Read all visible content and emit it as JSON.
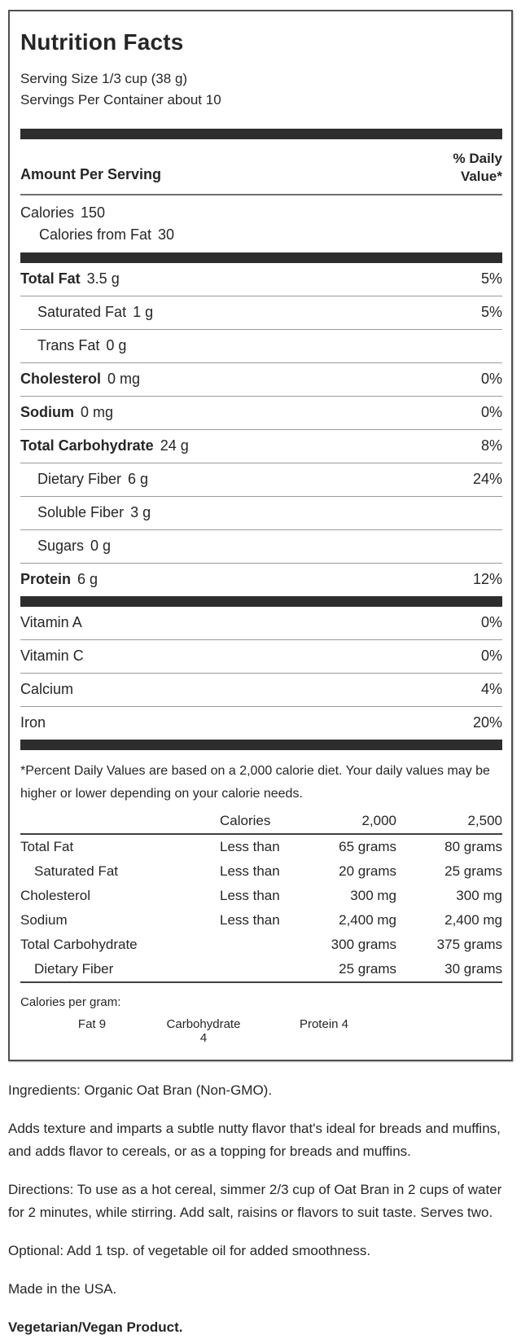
{
  "label": {
    "title": "Nutrition Facts",
    "serving_size": "Serving Size 1/3 cup (38 g)",
    "servings_per_container": "Servings Per Container about 10",
    "amount_per_serving": "Amount Per Serving",
    "daily_value_header_line1": "% Daily",
    "daily_value_header_line2": "Value*",
    "calories": {
      "label": "Calories",
      "value": "150"
    },
    "calories_from_fat": {
      "label": "Calories from Fat",
      "value": "30"
    },
    "nutrients": [
      {
        "label": "Total Fat",
        "amount": "3.5 g",
        "dv": "5%"
      },
      {
        "label": "Saturated Fat",
        "amount": "1 g",
        "dv": "5%"
      },
      {
        "label": "Trans Fat",
        "amount": "0 g",
        "dv": ""
      },
      {
        "label": "Cholesterol",
        "amount": "0 mg",
        "dv": "0%"
      },
      {
        "label": "Sodium",
        "amount": "0 mg",
        "dv": "0%"
      },
      {
        "label": "Total Carbohydrate",
        "amount": "24 g",
        "dv": "8%"
      },
      {
        "label": "Dietary Fiber",
        "amount": "6 g",
        "dv": "24%"
      },
      {
        "label": "Soluble Fiber",
        "amount": "3 g",
        "dv": ""
      },
      {
        "label": "Sugars",
        "amount": "0 g",
        "dv": ""
      },
      {
        "label": "Protein",
        "amount": "6 g",
        "dv": "12%"
      }
    ],
    "vitamins": [
      {
        "label": "Vitamin A",
        "dv": "0%"
      },
      {
        "label": "Vitamin C",
        "dv": "0%"
      },
      {
        "label": "Calcium",
        "dv": "4%"
      },
      {
        "label": "Iron",
        "dv": "20%"
      }
    ],
    "footnote": "*Percent Daily Values are based on a 2,000 calorie diet. Your daily values may be higher or lower depending on your calorie needs.",
    "dv_table": {
      "header": {
        "c2": "Calories",
        "c3": "2,000",
        "c4": "2,500"
      },
      "rows": [
        {
          "c1": "Total Fat",
          "c2": "Less than",
          "c3": "65 grams",
          "c4": "80 grams"
        },
        {
          "c1": "Saturated Fat",
          "c2": "Less than",
          "c3": "20 grams",
          "c4": "25 grams"
        },
        {
          "c1": "Cholesterol",
          "c2": "Less than",
          "c3": "300 mg",
          "c4": "300 mg"
        },
        {
          "c1": "Sodium",
          "c2": "Less than",
          "c3": "2,400 mg",
          "c4": "2,400 mg"
        },
        {
          "c1": "Total Carbohydrate",
          "c2": "",
          "c3": "300 grams",
          "c4": "375 grams"
        },
        {
          "c1": "Dietary Fiber",
          "c2": "",
          "c3": "25 grams",
          "c4": "30 grams"
        }
      ]
    },
    "calories_per_gram": {
      "label": "Calories per gram:",
      "items": {
        "fat": "Fat 9",
        "carbohydrate": "Carbohydrate 4",
        "protein": "Protein 4"
      }
    }
  },
  "details": {
    "ingredients": "Ingredients: Organic Oat Bran (Non-GMO).",
    "description": "Adds texture and imparts a subtle nutty flavor that's ideal for breads and muffins, and adds flavor to cereals, or as a topping for breads and muffins.",
    "directions": "Directions: To use as a hot cereal, simmer 2/3 cup of Oat Bran in 2 cups of water for 2 minutes, while stirring. Add salt, raisins or flavors to suit taste. Serves two.",
    "optional": "Optional: Add 1 tsp. of vegetable oil for added smoothness.",
    "made_in": "Made in the USA.",
    "vegetarian": "Vegetarian/Vegan Product."
  },
  "colors": {
    "thick_bar": "#2d2d2d",
    "box_border": "#4f4f4f",
    "row_divider": "#9b9b9b",
    "text": "#262626"
  }
}
